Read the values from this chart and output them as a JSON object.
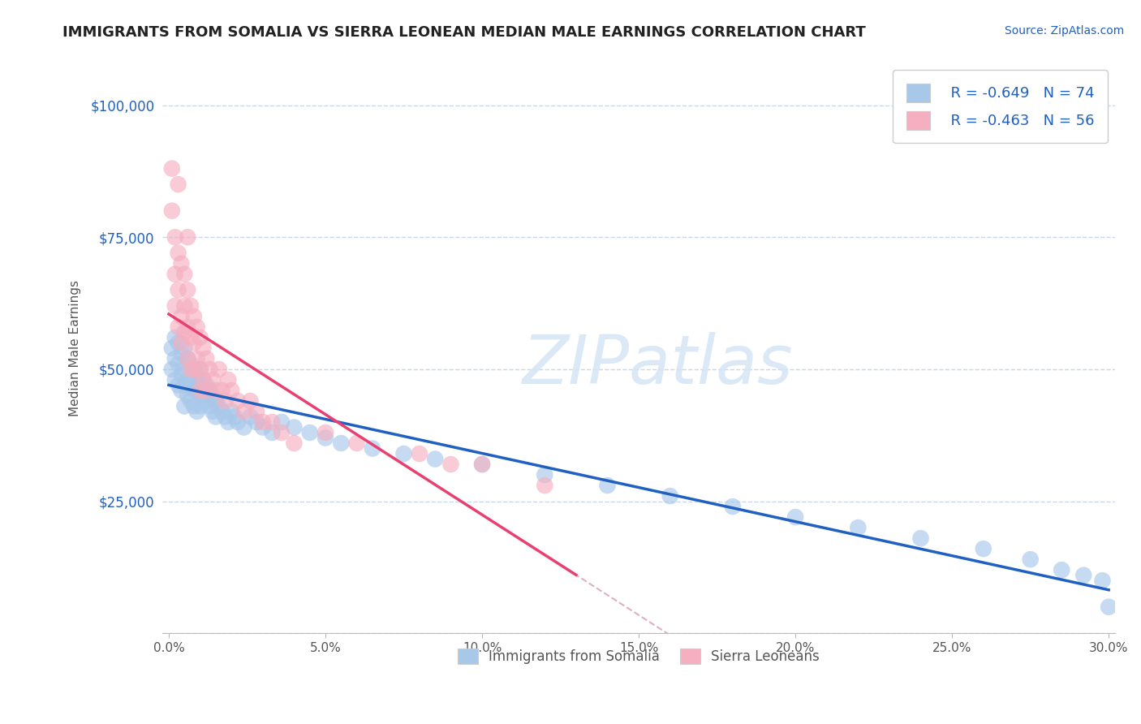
{
  "title": "IMMIGRANTS FROM SOMALIA VS SIERRA LEONEAN MEDIAN MALE EARNINGS CORRELATION CHART",
  "source": "Source: ZipAtlas.com",
  "ylabel": "Median Male Earnings",
  "legend_label1": "Immigrants from Somalia",
  "legend_label2": "Sierra Leoneans",
  "legend_R1": "R = -0.649",
  "legend_N1": "N = 74",
  "legend_R2": "R = -0.463",
  "legend_N2": "N = 56",
  "color_somalia": "#a8c8ea",
  "color_sierra": "#f5afc0",
  "color_trend_somalia": "#2060c0",
  "color_trend_sierra": "#e84070",
  "color_trend_dashed": "#e0b0c0",
  "watermark": "ZIPatlas",
  "background_color": "#ffffff",
  "grid_color": "#c8d8e8",
  "xlim": [
    -0.002,
    0.302
  ],
  "ylim": [
    0,
    108000
  ],
  "xtick_labels": [
    "0.0%",
    "5.0%",
    "10.0%",
    "15.0%",
    "20.0%",
    "25.0%",
    "30.0%"
  ],
  "xtick_values": [
    0.0,
    0.05,
    0.1,
    0.15,
    0.2,
    0.25,
    0.3
  ],
  "ytick_values": [
    0,
    25000,
    50000,
    75000,
    100000
  ],
  "ytick_labels": [
    "",
    "$25,000",
    "$50,000",
    "$75,000",
    "$100,000"
  ],
  "somalia_x": [
    0.001,
    0.001,
    0.002,
    0.002,
    0.002,
    0.003,
    0.003,
    0.003,
    0.004,
    0.004,
    0.004,
    0.005,
    0.005,
    0.005,
    0.005,
    0.006,
    0.006,
    0.006,
    0.007,
    0.007,
    0.007,
    0.008,
    0.008,
    0.008,
    0.009,
    0.009,
    0.009,
    0.01,
    0.01,
    0.01,
    0.011,
    0.011,
    0.012,
    0.012,
    0.013,
    0.013,
    0.014,
    0.014,
    0.015,
    0.015,
    0.016,
    0.017,
    0.018,
    0.019,
    0.02,
    0.021,
    0.022,
    0.024,
    0.026,
    0.028,
    0.03,
    0.033,
    0.036,
    0.04,
    0.045,
    0.05,
    0.055,
    0.065,
    0.075,
    0.085,
    0.1,
    0.12,
    0.14,
    0.16,
    0.18,
    0.2,
    0.22,
    0.24,
    0.26,
    0.275,
    0.285,
    0.292,
    0.298,
    0.3
  ],
  "somalia_y": [
    54000,
    50000,
    56000,
    52000,
    48000,
    55000,
    51000,
    47000,
    53000,
    49000,
    46000,
    54000,
    50000,
    47000,
    43000,
    52000,
    48000,
    45000,
    51000,
    47000,
    44000,
    50000,
    46000,
    43000,
    49000,
    46000,
    42000,
    50000,
    47000,
    43000,
    48000,
    45000,
    47000,
    44000,
    46000,
    43000,
    45000,
    42000,
    44000,
    41000,
    43000,
    42000,
    41000,
    40000,
    42000,
    41000,
    40000,
    39000,
    41000,
    40000,
    39000,
    38000,
    40000,
    39000,
    38000,
    37000,
    36000,
    35000,
    34000,
    33000,
    32000,
    30000,
    28000,
    26000,
    24000,
    22000,
    20000,
    18000,
    16000,
    14000,
    12000,
    11000,
    10000,
    5000
  ],
  "sierra_x": [
    0.001,
    0.001,
    0.002,
    0.002,
    0.002,
    0.003,
    0.003,
    0.003,
    0.003,
    0.004,
    0.004,
    0.004,
    0.005,
    0.005,
    0.005,
    0.006,
    0.006,
    0.006,
    0.006,
    0.007,
    0.007,
    0.007,
    0.008,
    0.008,
    0.008,
    0.009,
    0.009,
    0.01,
    0.01,
    0.01,
    0.011,
    0.011,
    0.012,
    0.012,
    0.013,
    0.014,
    0.015,
    0.016,
    0.017,
    0.018,
    0.019,
    0.02,
    0.022,
    0.024,
    0.026,
    0.028,
    0.03,
    0.033,
    0.036,
    0.04,
    0.05,
    0.06,
    0.08,
    0.09,
    0.1,
    0.12
  ],
  "sierra_y": [
    88000,
    80000,
    75000,
    68000,
    62000,
    72000,
    65000,
    58000,
    85000,
    70000,
    60000,
    55000,
    68000,
    62000,
    57000,
    75000,
    65000,
    58000,
    52000,
    62000,
    56000,
    50000,
    60000,
    55000,
    50000,
    58000,
    52000,
    56000,
    50000,
    46000,
    54000,
    48000,
    52000,
    46000,
    50000,
    48000,
    46000,
    50000,
    46000,
    44000,
    48000,
    46000,
    44000,
    42000,
    44000,
    42000,
    40000,
    40000,
    38000,
    36000,
    38000,
    36000,
    34000,
    32000,
    32000,
    28000
  ]
}
